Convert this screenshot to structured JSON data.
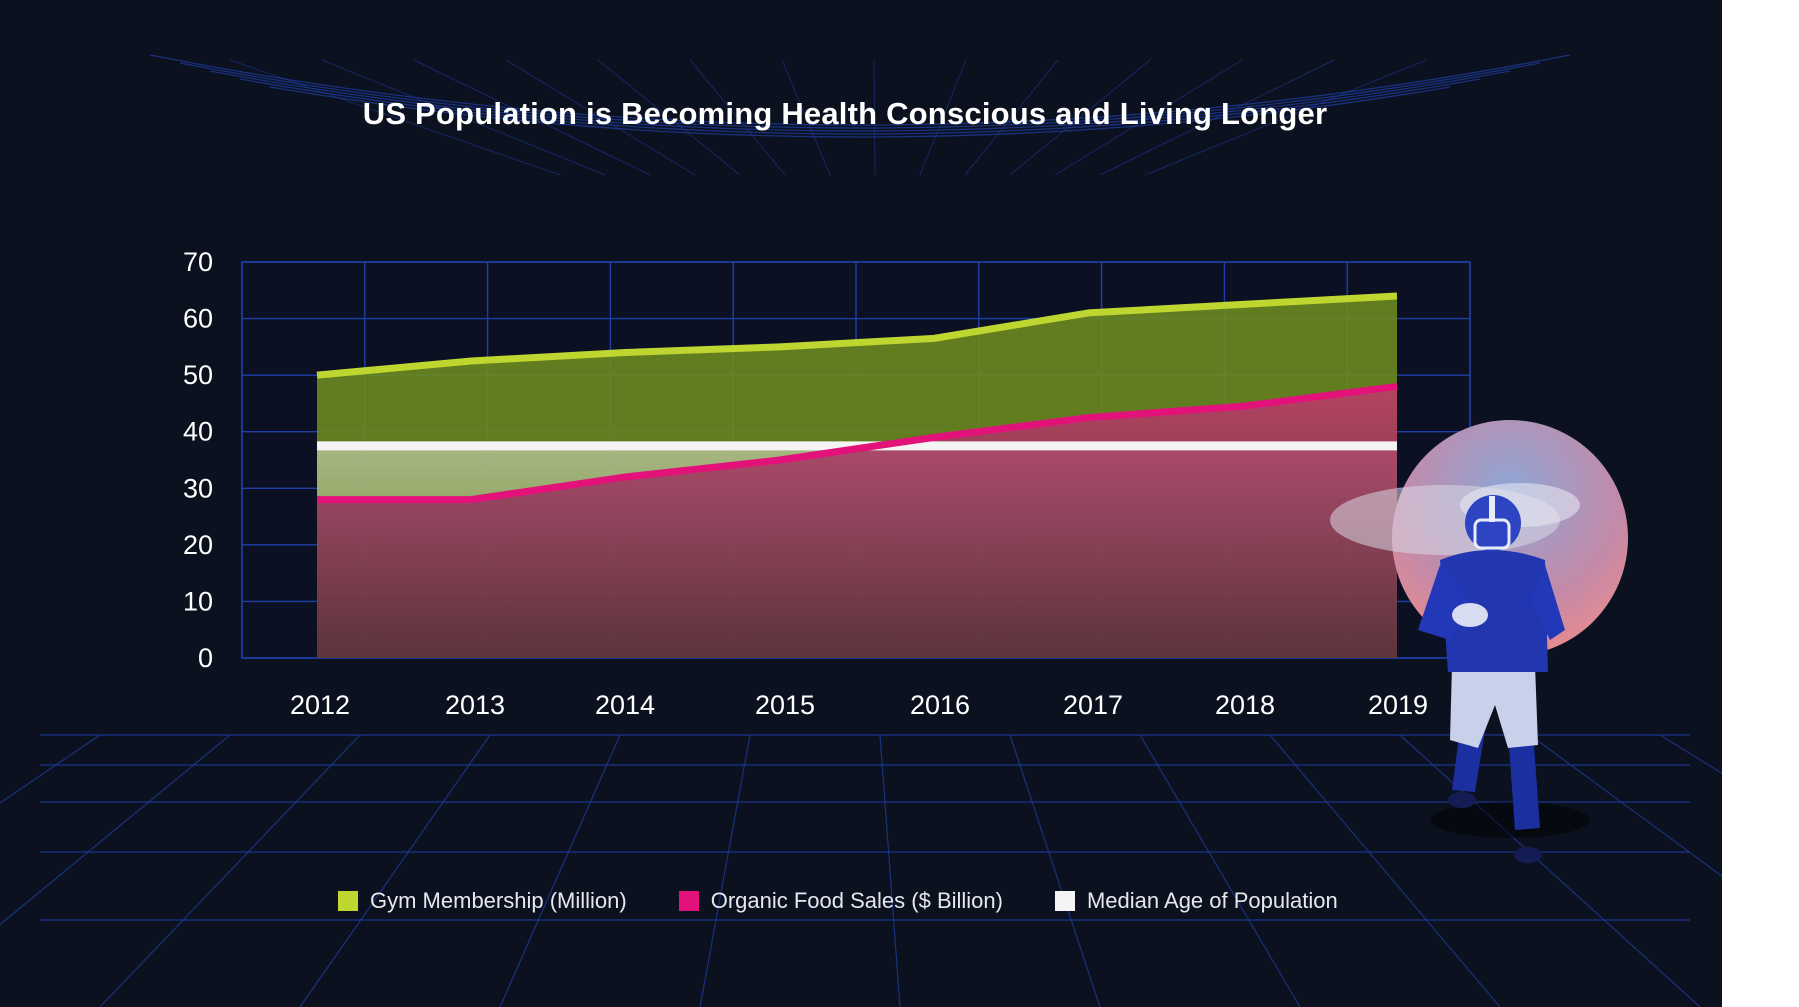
{
  "colors": {
    "background": "#0b111e",
    "grid": "#1f3fa8",
    "gym": "#bed62f",
    "organic": "#e2127a",
    "median": "#f4f4f4",
    "text": "#ffffff"
  },
  "chart_data": {
    "type": "area",
    "title": "US Population is Becoming Health Conscious and Living Longer",
    "categories": [
      "2012",
      "2013",
      "2014",
      "2015",
      "2016",
      "2017",
      "2018",
      "2019"
    ],
    "ylim": [
      0,
      70
    ],
    "yticks": [
      "0",
      "10",
      "20",
      "30",
      "40",
      "50",
      "60",
      "70"
    ],
    "grid": true,
    "legend_position": "bottom",
    "series": [
      {
        "name": "Gym Membership (Million)",
        "values": [
          50,
          52.5,
          54,
          55,
          56.5,
          61,
          62.5,
          64
        ]
      },
      {
        "name": "Organic Food Sales ($ Billion)",
        "values": [
          28,
          28,
          32,
          35,
          39,
          42.5,
          44.5,
          48
        ]
      },
      {
        "name": "Median Age of Population",
        "values": [
          37.5,
          37.5,
          37.5,
          37.5,
          37.5,
          37.5,
          37.5,
          37.5
        ]
      }
    ]
  },
  "icons": {
    "illustration": "football-player-running-illustration"
  }
}
